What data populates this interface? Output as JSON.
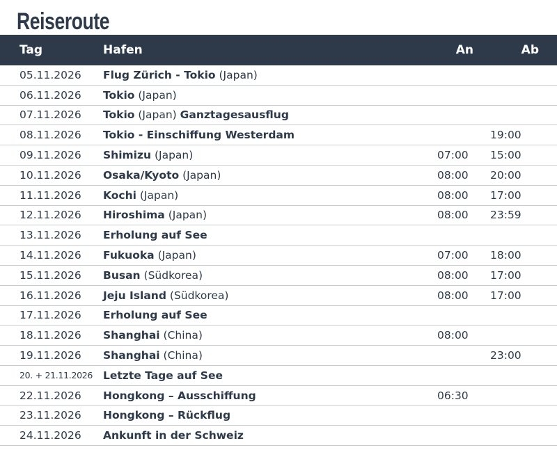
{
  "title": "Reiseroute",
  "columns": {
    "tag": "Tag",
    "hafen": "Hafen",
    "an": "An",
    "ab": "Ab"
  },
  "rows": [
    {
      "tag": "05.11.2026",
      "port": "Flug Zürich - Tokio",
      "extra": "(Japan)",
      "an": "",
      "ab": ""
    },
    {
      "tag": "06.11.2026",
      "port": "Tokio",
      "extra": "(Japan)",
      "an": "",
      "ab": ""
    },
    {
      "tag": "07.11.2026",
      "port": "Tokio",
      "extra": "(Japan)",
      "suffix": "Ganztagesausflug",
      "an": "",
      "ab": ""
    },
    {
      "tag": "08.11.2026",
      "port": "Tokio - Einschiffung Westerdam",
      "extra": "",
      "an": "",
      "ab": "19:00"
    },
    {
      "tag": "09.11.2026",
      "port": "Shimizu",
      "extra": "(Japan)",
      "an": "07:00",
      "ab": "15:00"
    },
    {
      "tag": "10.11.2026",
      "port": "Osaka/Kyoto",
      "extra": "(Japan)",
      "an": "08:00",
      "ab": "20:00"
    },
    {
      "tag": "11.11.2026",
      "port": "Kochi",
      "extra": "(Japan)",
      "an": "08:00",
      "ab": "17:00"
    },
    {
      "tag": "12.11.2026",
      "port": "Hiroshima",
      "extra": "(Japan)",
      "an": "08:00",
      "ab": "23:59"
    },
    {
      "tag": "13.11.2026",
      "port": "Erholung auf See",
      "extra": "",
      "an": "",
      "ab": ""
    },
    {
      "tag": "14.11.2026",
      "port": "Fukuoka",
      "extra": "(Japan)",
      "an": "07:00",
      "ab": "18:00"
    },
    {
      "tag": "15.11.2026",
      "port": "Busan",
      "extra": "(Südkorea)",
      "an": "08:00",
      "ab": "17:00"
    },
    {
      "tag": "16.11.2026",
      "port": "Jeju Island",
      "extra": "(Südkorea)",
      "an": "08:00",
      "ab": "17:00"
    },
    {
      "tag": "17.11.2026",
      "port": "Erholung auf See",
      "extra": "",
      "an": "",
      "ab": ""
    },
    {
      "tag": "18.11.2026",
      "port": "Shanghai",
      "extra": "(China)",
      "an": "08:00",
      "ab": ""
    },
    {
      "tag": "19.11.2026",
      "port": "Shanghai",
      "extra": "(China)",
      "an": "",
      "ab": "23:00"
    },
    {
      "tag": "20. + 21.11.2026",
      "small": true,
      "port": "Letzte Tage auf See",
      "extra": "",
      "an": "",
      "ab": ""
    },
    {
      "tag": "22.11.2026",
      "port": "Hongkong – Ausschiffung",
      "extra": "",
      "an": "06:30",
      "ab": ""
    },
    {
      "tag": "23.11.2026",
      "port": "Hongkong – Rückflug",
      "extra": "",
      "an": "",
      "ab": ""
    },
    {
      "tag": "24.11.2026",
      "port": "Ankunft in der Schweiz",
      "extra": "",
      "an": "",
      "ab": ""
    }
  ]
}
